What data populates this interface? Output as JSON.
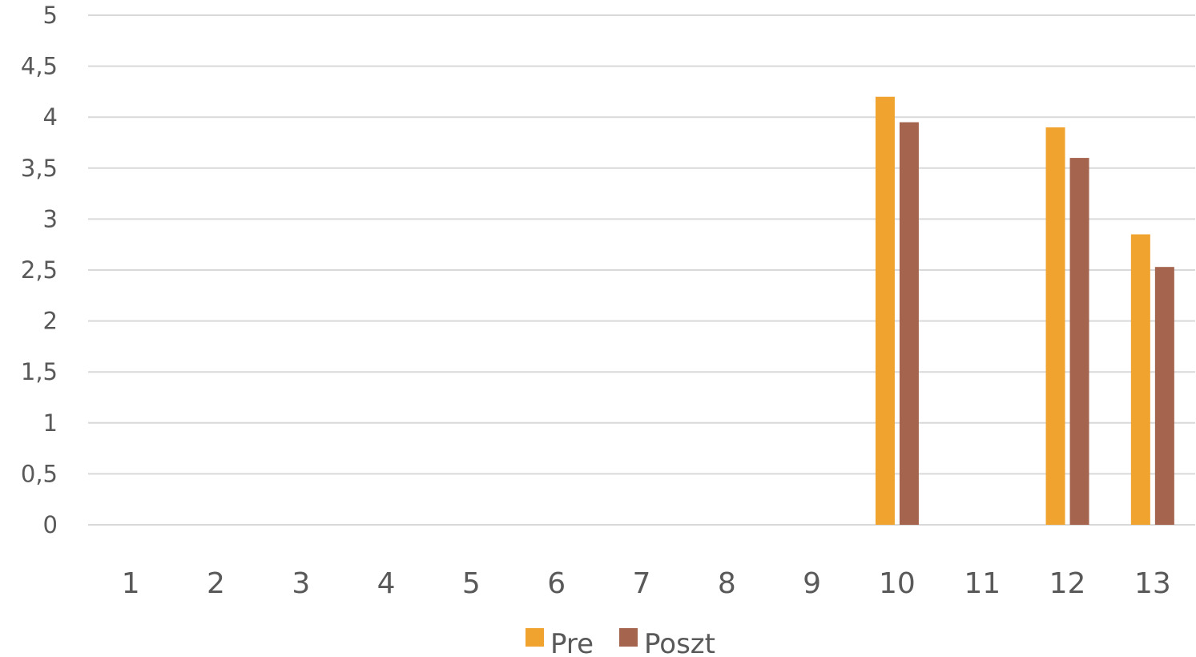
{
  "chart_data": {
    "type": "bar",
    "categories": [
      "1",
      "2",
      "3",
      "4",
      "5",
      "6",
      "7",
      "8",
      "9",
      "10",
      "11",
      "12",
      "13"
    ],
    "series": [
      {
        "name": "Pre",
        "color": "#f0a32f",
        "values": [
          0,
          0,
          0,
          0,
          0,
          0,
          0,
          0,
          0,
          4.2,
          0,
          3.9,
          2.85
        ]
      },
      {
        "name": "Poszt",
        "color": "#a5644e",
        "values": [
          0,
          0,
          0,
          0,
          0,
          0,
          0,
          0,
          0,
          3.95,
          0,
          3.6,
          2.53
        ]
      }
    ],
    "yticks": [
      "0",
      "0,5",
      "1",
      "1,5",
      "2",
      "2,5",
      "3",
      "3,5",
      "4",
      "4,5",
      "5"
    ],
    "ylim": [
      0,
      5
    ],
    "grid": true,
    "legend": "bottom",
    "title": "",
    "xlabel": "",
    "ylabel": ""
  }
}
